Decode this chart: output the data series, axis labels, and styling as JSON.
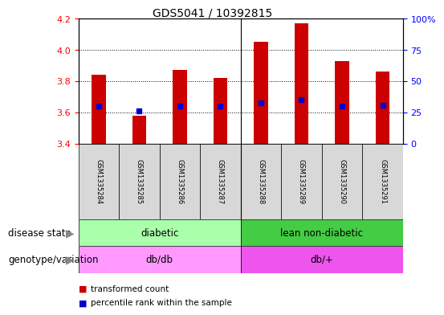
{
  "title": "GDS5041 / 10392815",
  "samples": [
    "GSM1335284",
    "GSM1335285",
    "GSM1335286",
    "GSM1335287",
    "GSM1335288",
    "GSM1335289",
    "GSM1335290",
    "GSM1335291"
  ],
  "bar_bottom": 3.4,
  "bar_tops": [
    3.84,
    3.58,
    3.87,
    3.82,
    4.05,
    4.17,
    3.93,
    3.86
  ],
  "percentile_vals": [
    3.64,
    3.61,
    3.64,
    3.64,
    3.66,
    3.68,
    3.64,
    3.645
  ],
  "ylim": [
    3.4,
    4.2
  ],
  "y2lim": [
    0,
    100
  ],
  "yticks": [
    3.4,
    3.6,
    3.8,
    4.0,
    4.2
  ],
  "y2ticks": [
    0,
    25,
    50,
    75,
    100
  ],
  "bar_color": "#cc0000",
  "dot_color": "#0000cc",
  "disease_states": [
    "diabetic",
    "lean non-diabetic"
  ],
  "disease_state_colors": [
    "#aaffaa",
    "#44cc44"
  ],
  "genotype_labels": [
    "db/db",
    "db/+"
  ],
  "genotype_colors": [
    "#ff99ff",
    "#ee55ee"
  ],
  "split_at": 4,
  "label_row1": "disease state",
  "label_row2": "genotype/variation",
  "legend_bar": "transformed count",
  "legend_dot": "percentile rank within the sample",
  "sample_bg": "#d8d8d8",
  "bar_width": 0.35
}
